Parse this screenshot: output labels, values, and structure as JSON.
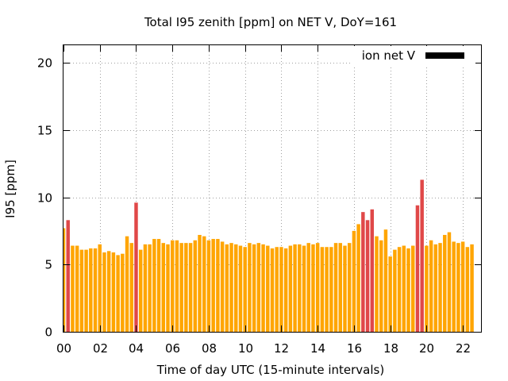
{
  "chart_data": {
    "type": "bar",
    "title": "Total I95 zenith [ppm] on NET V, DoY=161",
    "xlabel": "Time of day UTC (15-minute intervals)",
    "ylabel": "I95 [ppm]",
    "ylim": [
      0,
      21.3
    ],
    "xlim": [
      0,
      23.0
    ],
    "y_ticks": [
      "0",
      "5",
      "10",
      "15",
      "20"
    ],
    "x_ticks": [
      "00",
      "02",
      "04",
      "06",
      "08",
      "10",
      "12",
      "14",
      "16",
      "18",
      "20",
      "22"
    ],
    "grid": true,
    "legend": {
      "label": "ion net V",
      "position": "top-right",
      "color": "#000000"
    },
    "colors": {
      "normal": "#ffa500",
      "high": "#e04848"
    },
    "series": [
      {
        "values": [
          7.7,
          8.3,
          6.4,
          6.4,
          6.1,
          6.1,
          6.2,
          6.2,
          6.5,
          5.9,
          6.0,
          5.9,
          5.7,
          5.8,
          7.1,
          6.6,
          9.6,
          6.1,
          6.5,
          6.5,
          6.9,
          6.9,
          6.6,
          6.5,
          6.8,
          6.8,
          6.6,
          6.6,
          6.6,
          6.8,
          7.2,
          7.1,
          6.8,
          6.9,
          6.9,
          6.7,
          6.5,
          6.6,
          6.5,
          6.4,
          6.3,
          6.6,
          6.5,
          6.6,
          6.5,
          6.4,
          6.2,
          6.3,
          6.3,
          6.2,
          6.4,
          6.5,
          6.5,
          6.4,
          6.6,
          6.5,
          6.6,
          6.3,
          6.3,
          6.3,
          6.6,
          6.6,
          6.4,
          6.6,
          7.5,
          8.0,
          8.9,
          8.3,
          9.1,
          7.1,
          6.8,
          7.6,
          5.6,
          6.1,
          6.3,
          6.4,
          6.2,
          6.4,
          9.4,
          11.3,
          6.4,
          6.8,
          6.5,
          6.6,
          7.2,
          7.4,
          6.7,
          6.6,
          6.7,
          6.3,
          6.5
        ],
        "highlight": [
          1,
          16,
          66,
          67,
          68,
          78,
          79
        ]
      }
    ]
  }
}
